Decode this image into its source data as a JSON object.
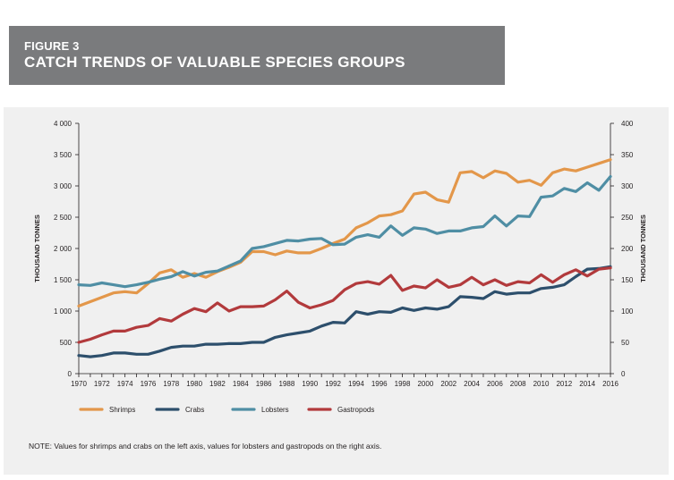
{
  "figure": {
    "label": "FIGURE 3",
    "title": "CATCH TRENDS OF VALUABLE SPECIES GROUPS",
    "note": "NOTE: Values for shrimps and crabs on the left axis, values for lobsters and gastropods on the right axis."
  },
  "chart_data": {
    "type": "line",
    "ylabel_left": "THOUSAND TONNES",
    "ylabel_right": "THOUSAND TONNES",
    "ylim_left": [
      0,
      4000
    ],
    "ylim_right": [
      0,
      400
    ],
    "y_ticks_left": [
      "0",
      "500",
      "1 000",
      "1 500",
      "2 000",
      "2 500",
      "3 000",
      "3 500",
      "4 000"
    ],
    "y_ticks_right": [
      "0",
      "50",
      "100",
      "150",
      "200",
      "250",
      "300",
      "350",
      "400"
    ],
    "x_tick_labels": [
      "1970",
      "1972",
      "1974",
      "1976",
      "1978",
      "1980",
      "1982",
      "1984",
      "1986",
      "1988",
      "1990",
      "1992",
      "1994",
      "1996",
      "1998",
      "2000",
      "2002",
      "2004",
      "2006",
      "2008",
      "2010",
      "2012",
      "2014",
      "2016"
    ],
    "x": [
      1970,
      1971,
      1972,
      1973,
      1974,
      1975,
      1976,
      1977,
      1978,
      1979,
      1980,
      1981,
      1982,
      1983,
      1984,
      1985,
      1986,
      1987,
      1988,
      1989,
      1990,
      1991,
      1992,
      1993,
      1994,
      1995,
      1996,
      1997,
      1998,
      1999,
      2000,
      2001,
      2002,
      2003,
      2004,
      2005,
      2006,
      2007,
      2008,
      2009,
      2010,
      2011,
      2012,
      2013,
      2014,
      2015,
      2016
    ],
    "grid": false,
    "legend_position": "bottom",
    "series": [
      {
        "name": "Shrimps",
        "axis": "left",
        "color": "#e3974a",
        "values": [
          1080,
          1150,
          1220,
          1290,
          1310,
          1290,
          1440,
          1610,
          1660,
          1540,
          1600,
          1540,
          1630,
          1700,
          1780,
          1950,
          1950,
          1900,
          1960,
          1930,
          1930,
          2000,
          2080,
          2150,
          2330,
          2410,
          2520,
          2540,
          2600,
          2870,
          2900,
          2780,
          2740,
          3210,
          3230,
          3130,
          3240,
          3200,
          3060,
          3090,
          3010,
          3210,
          3270,
          3240,
          3300,
          3360,
          3420
        ]
      },
      {
        "name": "Crabs",
        "axis": "left",
        "color": "#2d4f6c",
        "values": [
          290,
          270,
          290,
          330,
          330,
          310,
          310,
          360,
          420,
          440,
          440,
          470,
          470,
          480,
          480,
          500,
          500,
          580,
          620,
          650,
          680,
          760,
          820,
          810,
          990,
          950,
          990,
          980,
          1050,
          1010,
          1050,
          1030,
          1070,
          1230,
          1220,
          1200,
          1310,
          1270,
          1290,
          1290,
          1360,
          1380,
          1420,
          1550,
          1670,
          1680,
          1710
        ]
      },
      {
        "name": "Lobsters",
        "axis": "right",
        "color": "#4f8ea4",
        "values": [
          142,
          141,
          145,
          142,
          139,
          142,
          146,
          151,
          155,
          163,
          156,
          162,
          164,
          172,
          180,
          200,
          203,
          208,
          213,
          212,
          215,
          216,
          206,
          207,
          218,
          222,
          218,
          236,
          221,
          233,
          231,
          224,
          228,
          228,
          233,
          235,
          252,
          236,
          252,
          251,
          282,
          284,
          296,
          291,
          305,
          293,
          315
        ]
      },
      {
        "name": "Gastropods",
        "axis": "right",
        "color": "#b23a3c",
        "values": [
          50,
          55,
          62,
          68,
          68,
          74,
          77,
          88,
          84,
          95,
          104,
          99,
          113,
          100,
          107,
          107,
          108,
          118,
          132,
          114,
          105,
          110,
          117,
          134,
          144,
          147,
          143,
          157,
          133,
          140,
          137,
          150,
          138,
          142,
          154,
          142,
          150,
          141,
          147,
          145,
          158,
          146,
          158,
          166,
          156,
          167,
          169
        ]
      }
    ]
  }
}
